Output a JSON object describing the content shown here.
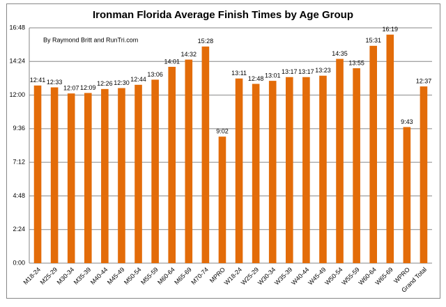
{
  "chart_data": {
    "type": "bar",
    "title": "Ironman Florida Average Finish Times by Age Group",
    "annotation": "By Raymond Britt and RunTri.com",
    "categories": [
      "M18-24",
      "M25-29",
      "M30-34",
      "M35-39",
      "M40-44",
      "M45-49",
      "M50-54",
      "M55-59",
      "M60-64",
      "M65-69",
      "M70-74",
      "MPRO",
      "W18-24",
      "W25-29",
      "W30-34",
      "W35-39",
      "W40-44",
      "W45-49",
      "W50-54",
      "W55-59",
      "W60-64",
      "W65-69",
      "WPRO",
      "Grand Total"
    ],
    "values": [
      761,
      753,
      727,
      729,
      746,
      750,
      764,
      786,
      841,
      872,
      928,
      542,
      791,
      768,
      781,
      797,
      797,
      803,
      875,
      835,
      931,
      979,
      583,
      757
    ],
    "value_labels": [
      "12:41",
      "12:33",
      "12:07",
      "12:09",
      "12:26",
      "12:30",
      "12:44",
      "13:06",
      "14:01",
      "14:32",
      "15:28",
      "9:02",
      "13:11",
      "12:48",
      "13:01",
      "13:17",
      "13:17",
      "13:23",
      "14:35",
      "13:55",
      "15:31",
      "16:19",
      "9:43",
      "12:37"
    ],
    "color": "#e36c09",
    "ylim": [
      0,
      1008
    ],
    "yticks": [
      {
        "value": 0,
        "label": "0:00"
      },
      {
        "value": 144,
        "label": "2:24"
      },
      {
        "value": 288,
        "label": "4:48"
      },
      {
        "value": 432,
        "label": "7:12"
      },
      {
        "value": 576,
        "label": "9:36"
      },
      {
        "value": 720,
        "label": "12:00"
      },
      {
        "value": 864,
        "label": "14:24"
      },
      {
        "value": 1008,
        "label": "16:48"
      }
    ],
    "grid": true
  }
}
